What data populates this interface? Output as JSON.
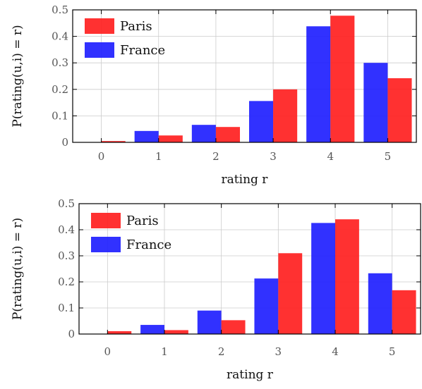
{
  "chart_data": [
    {
      "type": "bar",
      "categories": [
        "0",
        "1",
        "2",
        "3",
        "4",
        "5"
      ],
      "series": [
        {
          "name": "France",
          "color": "#1f1fff",
          "values": [
            0.0,
            0.043,
            0.066,
            0.156,
            0.438,
            0.3
          ]
        },
        {
          "name": "Paris",
          "color": "#ff2020",
          "values": [
            0.005,
            0.026,
            0.058,
            0.2,
            0.478,
            0.242
          ]
        }
      ],
      "legend_order": [
        "Paris",
        "France"
      ],
      "legend_position": "top-left",
      "xlabel": "rating r",
      "ylabel": "P(rating(u,i) = r)",
      "ylim": [
        0,
        0.5
      ],
      "yticks": [
        "0",
        "0.1",
        "0.2",
        "0.3",
        "0.4",
        "0.5"
      ],
      "grid": true
    },
    {
      "type": "bar",
      "categories": [
        "0",
        "1",
        "2",
        "3",
        "4",
        "5"
      ],
      "series": [
        {
          "name": "France",
          "color": "#1f1fff",
          "values": [
            0.001,
            0.035,
            0.09,
            0.213,
            0.426,
            0.233
          ]
        },
        {
          "name": "Paris",
          "color": "#ff2020",
          "values": [
            0.011,
            0.015,
            0.053,
            0.31,
            0.44,
            0.168
          ]
        }
      ],
      "legend_order": [
        "Paris",
        "France"
      ],
      "legend_position": "top-left",
      "xlabel": "rating r",
      "ylabel": "P(rating(u,i) = r)",
      "ylim": [
        0,
        0.5
      ],
      "yticks": [
        "0",
        "0.1",
        "0.2",
        "0.3",
        "0.4",
        "0.5"
      ],
      "grid": true
    }
  ]
}
